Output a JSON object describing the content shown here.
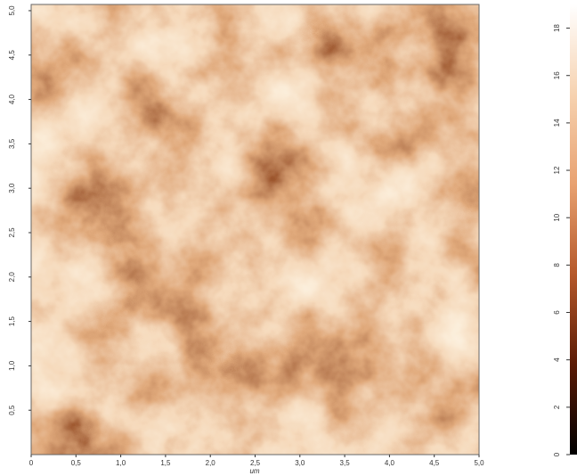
{
  "chart_data": {
    "type": "heatmap",
    "xlabel": "um",
    "xlim": [
      0,
      5.0
    ],
    "xticks": [
      0,
      {
        "value": 0.5,
        "label": "0,5"
      },
      {
        "value": 1.0,
        "label": "1,0"
      },
      {
        "value": 1.5,
        "label": "1,5"
      },
      {
        "value": 2.0,
        "label": "2,0"
      },
      {
        "value": 2.5,
        "label": "2,5"
      },
      {
        "value": 3.0,
        "label": "3,0"
      },
      {
        "value": 3.5,
        "label": "3,5"
      },
      {
        "value": 4.0,
        "label": "4,0"
      },
      {
        "value": 4.5,
        "label": "4,5"
      },
      {
        "value": 5.0,
        "label": "5,0"
      }
    ],
    "ylim": [
      0,
      5.07
    ],
    "yticks": [
      {
        "value": 0.5,
        "label": "0,5"
      },
      {
        "value": 1.0,
        "label": "1,0"
      },
      {
        "value": 1.5,
        "label": "1,5"
      },
      {
        "value": 2.0,
        "label": "2,0"
      },
      {
        "value": 2.5,
        "label": "2,5"
      },
      {
        "value": 3.0,
        "label": "3,0"
      },
      {
        "value": 3.5,
        "label": "3,5"
      },
      {
        "value": 4.0,
        "label": "4,0"
      },
      {
        "value": 4.5,
        "label": "4,5"
      },
      {
        "value": 5.0,
        "label": "5,0"
      }
    ],
    "zlim": [
      0,
      19
    ],
    "zticks": [
      0,
      2,
      4,
      6,
      8,
      10,
      12,
      14,
      16,
      18
    ],
    "colors": [
      "#000000",
      "#5a1a05",
      "#b5582a",
      "#e8a170",
      "#f6d2b0",
      "#ffffff"
    ]
  }
}
